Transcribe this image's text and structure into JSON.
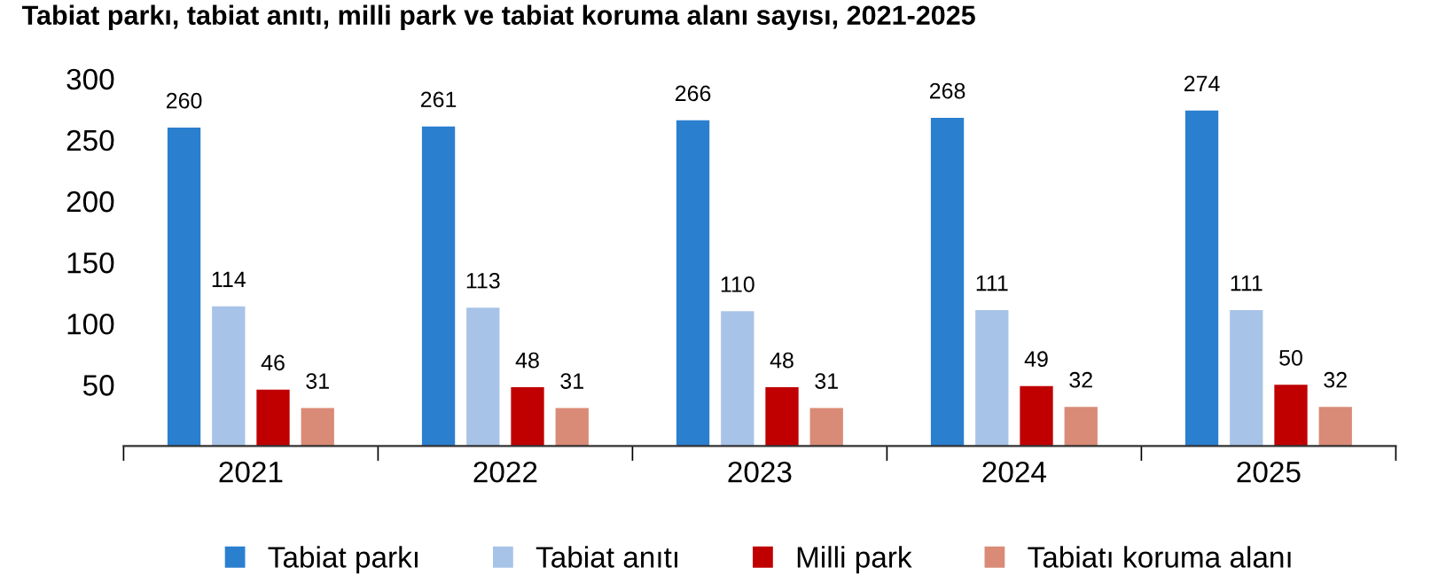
{
  "chart_data": {
    "type": "bar",
    "title": "Tabiat parkı, tabiat anıtı, milli park ve tabiat koruma alanı sayısı, 2021-2025",
    "categories": [
      "2021",
      "2022",
      "2023",
      "2024",
      "2025"
    ],
    "series": [
      {
        "name": "Tabiat parkı",
        "color": "#2b7fcf",
        "values": [
          260,
          261,
          266,
          268,
          274
        ]
      },
      {
        "name": "Tabiat anıtı",
        "color": "#a8c3e8",
        "values": [
          114,
          113,
          110,
          111,
          111
        ]
      },
      {
        "name": "Milli park",
        "color": "#c00000",
        "values": [
          46,
          48,
          48,
          49,
          50
        ]
      },
      {
        "name": "Tabiatı koruma alanı",
        "color": "#d98b77",
        "values": [
          31,
          31,
          31,
          32,
          32
        ]
      }
    ],
    "ylim": [
      0,
      300
    ],
    "yticks": [
      50,
      100,
      150,
      200,
      250,
      300
    ],
    "data_labels": true,
    "grid": false,
    "legend": "bottom"
  }
}
